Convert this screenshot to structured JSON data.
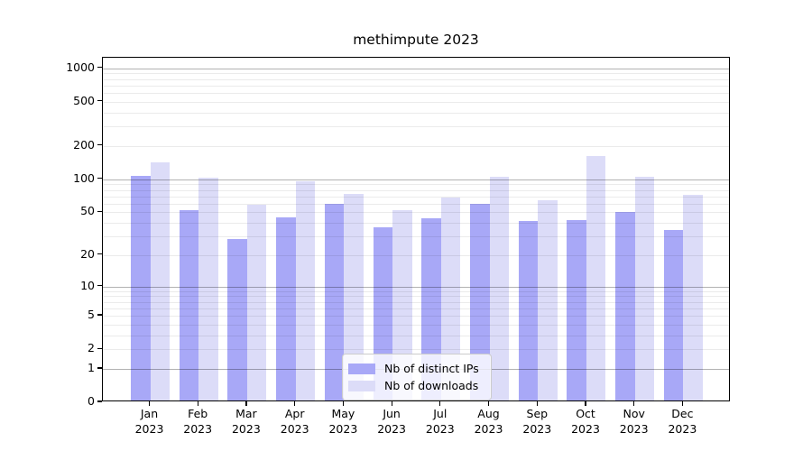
{
  "title": "methimpute 2023",
  "chart_data": {
    "type": "bar",
    "title": "methimpute 2023",
    "categories": [
      "Jan",
      "Feb",
      "Mar",
      "Apr",
      "May",
      "Jun",
      "Jul",
      "Aug",
      "Sep",
      "Oct",
      "Nov",
      "Dec"
    ],
    "year_label": "2023",
    "y_scale": "log1p",
    "y_ticks": [
      0,
      1,
      2,
      5,
      10,
      20,
      50,
      100,
      200,
      500,
      1000
    ],
    "ylim": [
      0,
      1220
    ],
    "grid": true,
    "legend_position": "lower-center-inside",
    "series": [
      {
        "name": "Nb of distinct IPs",
        "key": "distinct-ips",
        "color": "#a8a8f7",
        "values": [
          104,
          50,
          27,
          43,
          57,
          35,
          42,
          58,
          40,
          41,
          48,
          33
        ]
      },
      {
        "name": "Nb of downloads",
        "key": "downloads",
        "color": "#dcdcf8",
        "values": [
          137,
          100,
          56,
          92,
          71,
          50,
          66,
          101,
          62,
          155,
          101,
          70
        ]
      }
    ]
  }
}
